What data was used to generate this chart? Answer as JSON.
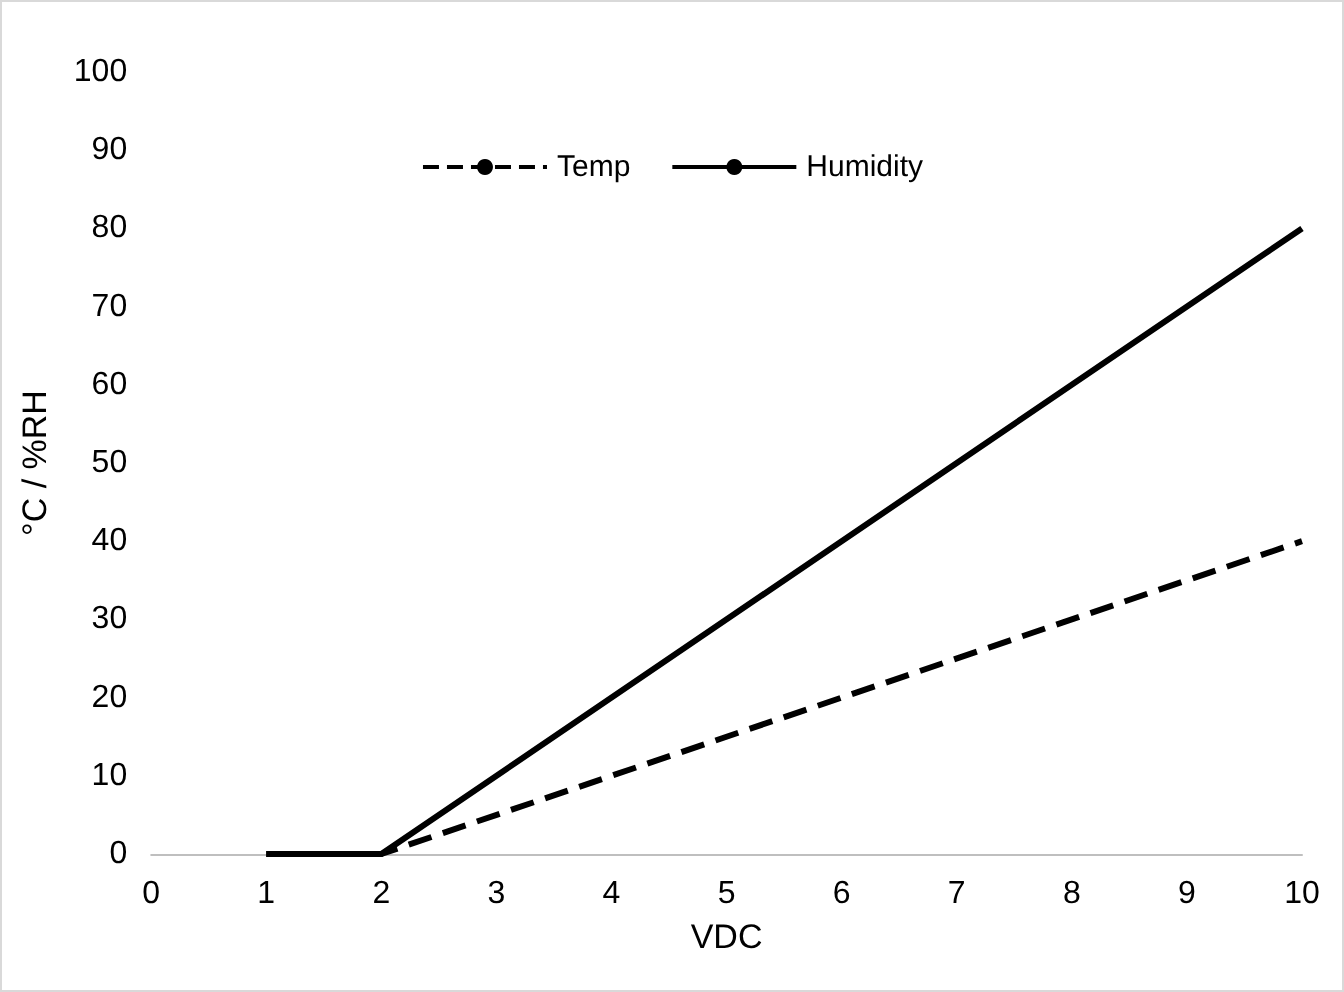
{
  "chart_data": {
    "type": "line",
    "xlabel": "VDC",
    "ylabel": "°C / %RH",
    "xlim": [
      0,
      10
    ],
    "xticks": [
      0,
      1,
      2,
      3,
      4,
      5,
      6,
      7,
      8,
      9,
      10
    ],
    "ylim": [
      0,
      100
    ],
    "yticks": [
      0,
      10,
      20,
      30,
      40,
      50,
      60,
      70,
      80,
      90,
      100
    ],
    "grid": false,
    "legend": "top",
    "marker": "none",
    "series": [
      {
        "name": "Temp",
        "color": "#000000",
        "line_style": "dashed",
        "x": [
          1,
          2,
          10
        ],
        "values": [
          0,
          0,
          40
        ]
      },
      {
        "name": "Humidity",
        "color": "#000000",
        "line_style": "solid",
        "x": [
          1,
          2,
          10
        ],
        "values": [
          0,
          0,
          80
        ]
      }
    ]
  }
}
